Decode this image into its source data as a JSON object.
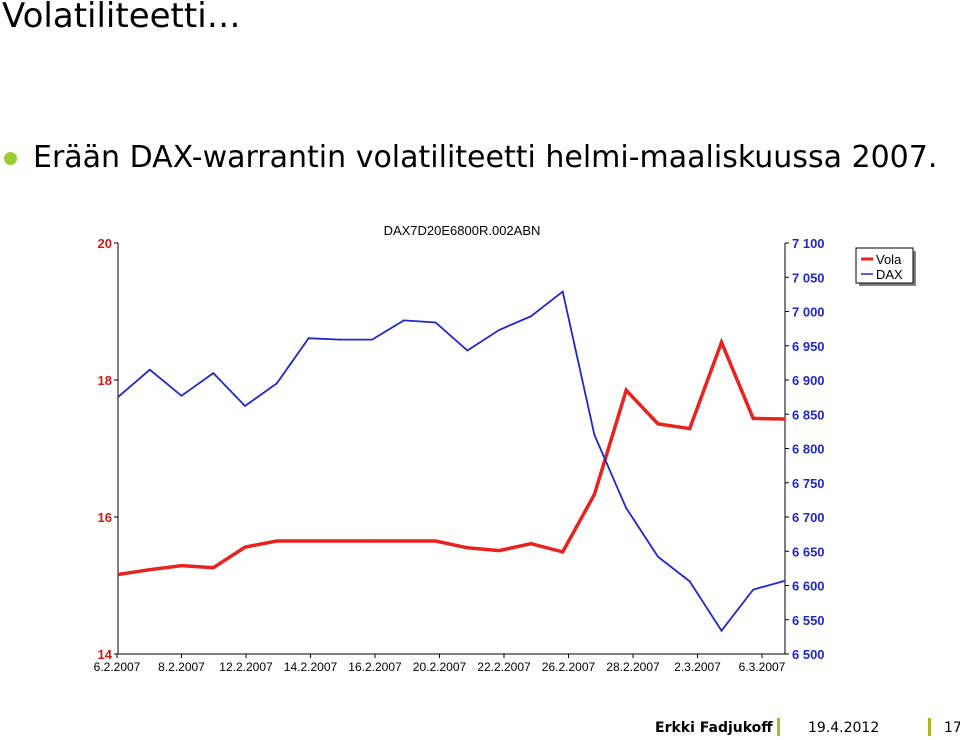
{
  "slide": {
    "title": "Volatiliteetti…",
    "bullet": "Erään DAX-warrantin volatiliteetti helmi-maaliskuussa 2007."
  },
  "footer": {
    "author": "Erkki Fadjukoff",
    "date": "19.4.2012",
    "page": "17"
  },
  "colors": {
    "vola": "#e8221e",
    "dax": "#1f28c8",
    "bullet": "#9acd32",
    "footer_sep": "#a8b820"
  },
  "chart_data": {
    "type": "line",
    "title": "DAX7D20E6800R.002ABN",
    "x_tick_labels": [
      "6.2.2007",
      "8.2.2007",
      "12.2.2007",
      "14.2.2007",
      "16.2.2007",
      "20.2.2007",
      "22.2.2007",
      "26.2.2007",
      "28.2.2007",
      "2.3.2007",
      "6.3.2007"
    ],
    "y_left": {
      "range": [
        14,
        20
      ],
      "ticks": [
        "14",
        "16",
        "18",
        "20"
      ]
    },
    "y_right": {
      "range": [
        6500,
        7100
      ],
      "ticks": [
        "6 500",
        "6 550",
        "6 600",
        "6 650",
        "6 700",
        "6 750",
        "6 800",
        "6 850",
        "6 900",
        "6 950",
        "7 000",
        "7 050",
        "7 100"
      ]
    },
    "legend_position": "top-right",
    "grid": false,
    "series": [
      {
        "name": "Vola",
        "axis": "left",
        "color": "#e8221e",
        "values": [
          15.16,
          15.23,
          15.29,
          15.26,
          15.56,
          15.65,
          15.65,
          15.65,
          15.65,
          15.65,
          15.65,
          15.55,
          15.51,
          15.61,
          15.49,
          16.33,
          17.85,
          17.36,
          17.29,
          18.55,
          17.44,
          17.43
        ]
      },
      {
        "name": "DAX",
        "axis": "right",
        "color": "#1f28c8",
        "values": [
          6875,
          6915,
          6877,
          6910,
          6862,
          6895,
          6961,
          6959,
          6959,
          6987,
          6984,
          6943,
          6973,
          6993,
          7029,
          6820,
          6713,
          6642,
          6606,
          6534,
          6594,
          6607
        ]
      }
    ]
  }
}
